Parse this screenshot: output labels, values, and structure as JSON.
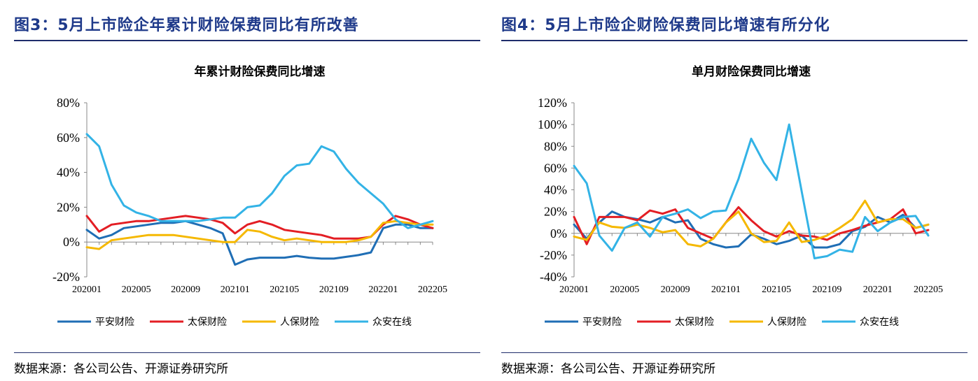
{
  "figures": [
    {
      "title": "图3：5月上市险企年累计财险保费同比有所改善",
      "source": "数据来源：各公司公告、开源证券研究所"
    },
    {
      "title": "图4：5月上市险企财险保费同比增速有所分化",
      "source": "数据来源：各公司公告、开源证券研究所"
    }
  ],
  "chart_data": [
    {
      "type": "line",
      "title": "年累计财险保费同比增速",
      "xlabel": "",
      "ylabel": "",
      "ylim": [
        -20,
        80
      ],
      "yticks": [
        "80%",
        "60%",
        "40%",
        "20%",
        "0%",
        "-20%"
      ],
      "ytick_values": [
        80,
        60,
        40,
        20,
        0,
        -20
      ],
      "x_tick_labels": [
        "202001",
        "202005",
        "202009",
        "202101",
        "202105",
        "202109",
        "202201",
        "202205"
      ],
      "x_tick_index": [
        0,
        4,
        8,
        12,
        16,
        20,
        24,
        28
      ],
      "x": [
        "202001",
        "202002",
        "202003",
        "202004",
        "202005",
        "202006",
        "202007",
        "202008",
        "202009",
        "202010",
        "202011",
        "202012",
        "202101",
        "202102",
        "202103",
        "202104",
        "202105",
        "202106",
        "202107",
        "202108",
        "202109",
        "202110",
        "202111",
        "202112",
        "202201",
        "202202",
        "202203",
        "202204",
        "202205"
      ],
      "legend_position": "bottom",
      "series": [
        {
          "name": "平安财险",
          "color": "#1f6eb5",
          "values": [
            7,
            2,
            4,
            8,
            9,
            10,
            11,
            11,
            12,
            10,
            8,
            5,
            -13,
            -10,
            -9,
            -9,
            -9,
            -8,
            -9,
            -9.5,
            -9.5,
            -8.5,
            -7.5,
            -6,
            8,
            10,
            10,
            8,
            8
          ]
        },
        {
          "name": "太保财险",
          "color": "#e31e24",
          "values": [
            15,
            6,
            10,
            11,
            12,
            12,
            13,
            14,
            15,
            14,
            13,
            11,
            5,
            10,
            12,
            10,
            7,
            6,
            5,
            4,
            2,
            2,
            2,
            3,
            10,
            15,
            13,
            10,
            8
          ]
        },
        {
          "name": "人保财险",
          "color": "#f5b800",
          "values": [
            -3,
            -4,
            1,
            2,
            3,
            4,
            4,
            4,
            3,
            2,
            1,
            0,
            0,
            7,
            6,
            3,
            1,
            2,
            1,
            0,
            0,
            0,
            1,
            3,
            11,
            12,
            11,
            10,
            10
          ]
        },
        {
          "name": "众安在线",
          "color": "#33b3e6",
          "values": [
            62,
            55,
            33,
            21,
            17,
            15,
            12,
            12,
            12,
            12,
            13,
            14,
            14,
            20,
            21,
            28,
            38,
            44,
            45,
            55,
            52,
            42,
            34,
            28,
            22,
            13,
            8,
            10,
            12
          ]
        }
      ]
    },
    {
      "type": "line",
      "title": "单月财险保费同比增速",
      "xlabel": "",
      "ylabel": "",
      "ylim": [
        -40,
        120
      ],
      "yticks": [
        "120%",
        "100%",
        "80%",
        "60%",
        "40%",
        "20%",
        "0%",
        "-20%",
        "-40%"
      ],
      "ytick_values": [
        120,
        100,
        80,
        60,
        40,
        20,
        0,
        -20,
        -40
      ],
      "x_tick_labels": [
        "202001",
        "202005",
        "202009",
        "202101",
        "202105",
        "202109",
        "202201",
        "202205"
      ],
      "x_tick_index": [
        0,
        4,
        8,
        12,
        16,
        20,
        24,
        28
      ],
      "x": [
        "202001",
        "202002",
        "202003",
        "202004",
        "202005",
        "202006",
        "202007",
        "202008",
        "202009",
        "202010",
        "202011",
        "202012",
        "202101",
        "202102",
        "202103",
        "202104",
        "202105",
        "202106",
        "202107",
        "202108",
        "202109",
        "202110",
        "202111",
        "202112",
        "202201",
        "202202",
        "202203",
        "202204",
        "202205"
      ],
      "legend_position": "bottom",
      "series": [
        {
          "name": "平安财险",
          "color": "#1f6eb5",
          "values": [
            8,
            -5,
            10,
            20,
            15,
            13,
            10,
            15,
            10,
            12,
            -5,
            -10,
            -13,
            -12,
            -1,
            -5,
            -10,
            -7,
            -2,
            -13,
            -13,
            -10,
            2,
            6,
            15,
            10,
            17,
            5,
            8
          ]
        },
        {
          "name": "太保财险",
          "color": "#e31e24",
          "values": [
            15,
            -10,
            15,
            15,
            15,
            12,
            21,
            18,
            22,
            5,
            0,
            -5,
            10,
            24,
            12,
            2,
            -3,
            2,
            -2,
            -3,
            -6,
            0,
            3,
            7,
            10,
            13,
            22,
            0,
            3
          ]
        },
        {
          "name": "人保财险",
          "color": "#f5b800",
          "values": [
            -3,
            -6,
            10,
            6,
            5,
            8,
            5,
            1,
            3,
            -10,
            -12,
            -5,
            10,
            20,
            0,
            -8,
            -7,
            10,
            -8,
            -6,
            -2,
            5,
            13,
            30,
            10,
            13,
            13,
            5,
            8
          ]
        },
        {
          "name": "众安在线",
          "color": "#33b3e6",
          "values": [
            62,
            46,
            -2,
            -16,
            5,
            10,
            -3,
            15,
            18,
            22,
            14,
            20,
            21,
            50,
            87,
            65,
            49,
            100,
            38,
            -23,
            -21,
            -15,
            -17,
            15,
            2,
            10,
            15,
            16,
            -2
          ]
        }
      ]
    }
  ]
}
